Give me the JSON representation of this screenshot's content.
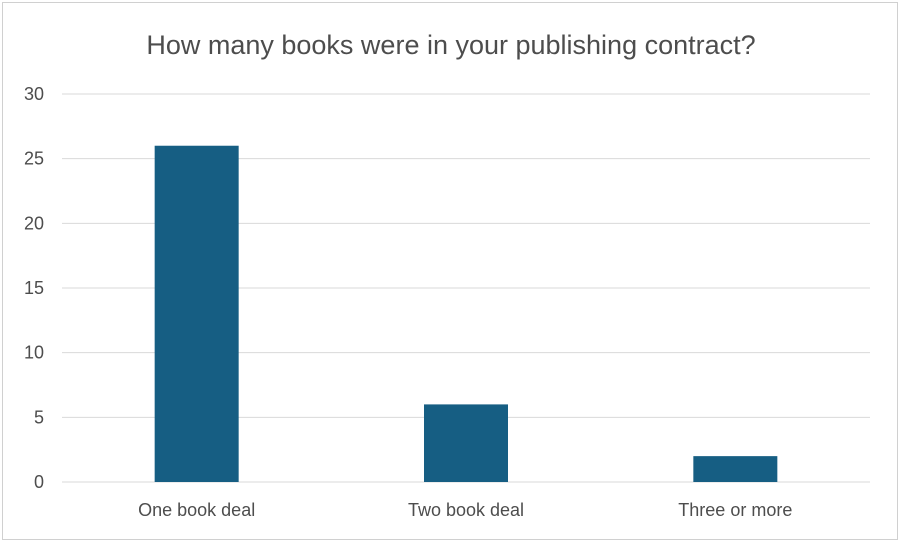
{
  "chart_data": {
    "type": "bar",
    "title": "How many books were in your publishing contract?",
    "categories": [
      "One book deal",
      "Two book deal",
      "Three or more"
    ],
    "values": [
      26,
      6,
      2
    ],
    "xlabel": "",
    "ylabel": "",
    "ylim": [
      0,
      30
    ],
    "yticks": [
      0,
      5,
      10,
      15,
      20,
      25,
      30
    ],
    "grid": true,
    "legend": "none",
    "bar_color": "#165e83",
    "grid_color": "#d9d9d9",
    "axis_color": "#d9d9d9",
    "text_color": "#4d4d4d"
  }
}
